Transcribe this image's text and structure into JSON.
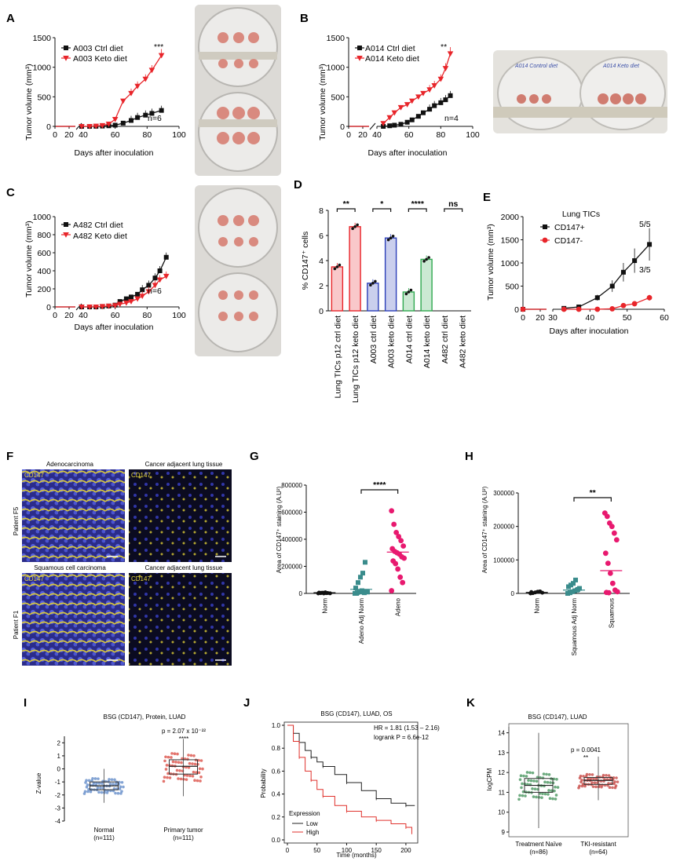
{
  "panels": {
    "A": "A",
    "B": "B",
    "C": "C",
    "D": "D",
    "E": "E",
    "F": "F",
    "G": "G",
    "H": "H",
    "I": "I",
    "J": "J",
    "K": "K"
  },
  "chart_data": [
    {
      "id": "A",
      "type": "line",
      "ylabel": "Tumor volume (mm³)",
      "xlabel": "Days after inoculation",
      "xticks": [
        "0",
        "20",
        "40",
        "60",
        "80",
        "100"
      ],
      "yticks": [
        "0",
        "500",
        "1000",
        "1500"
      ],
      "ylim": [
        0,
        1500
      ],
      "n_label": "n=6",
      "series": [
        {
          "name": "A003 Ctrl diet",
          "color": "#111111",
          "marker": "square",
          "x": [
            39,
            44,
            48,
            52,
            56,
            60,
            65,
            70,
            74,
            79,
            83,
            89
          ],
          "y": [
            0,
            0,
            2,
            5,
            10,
            20,
            55,
            100,
            150,
            190,
            220,
            270
          ]
        },
        {
          "name": "A003 Keto diet",
          "color": "#e8252a",
          "marker": "triangle-down",
          "x": [
            39,
            44,
            48,
            52,
            56,
            60,
            65,
            70,
            74,
            79,
            83,
            89
          ],
          "y": [
            0,
            0,
            5,
            15,
            40,
            120,
            430,
            560,
            680,
            800,
            950,
            1200
          ]
        }
      ],
      "significance": "***"
    },
    {
      "id": "B",
      "type": "line",
      "ylabel": "Tumor volume (mm³)",
      "xlabel": "Days after inoculation",
      "xticks": [
        "0",
        "20",
        "40",
        "60",
        "80",
        "100"
      ],
      "yticks": [
        "0",
        "500",
        "1000",
        "1500"
      ],
      "ylim": [
        0,
        1500
      ],
      "n_label": "n=4",
      "series": [
        {
          "name": "A014 Ctrl diet",
          "color": "#111111",
          "marker": "square",
          "x": [
            44,
            48,
            51,
            55,
            59,
            62,
            66,
            69,
            73,
            76,
            80,
            83,
            86
          ],
          "y": [
            0,
            10,
            20,
            35,
            70,
            110,
            170,
            230,
            290,
            350,
            400,
            450,
            520
          ]
        },
        {
          "name": "A014 Keto diet",
          "color": "#e8252a",
          "marker": "triangle-down",
          "x": [
            44,
            48,
            51,
            55,
            59,
            62,
            66,
            69,
            73,
            76,
            80,
            83,
            86
          ],
          "y": [
            50,
            150,
            230,
            320,
            370,
            430,
            500,
            560,
            620,
            690,
            800,
            980,
            1230
          ]
        }
      ],
      "significance": "**"
    },
    {
      "id": "C",
      "type": "line",
      "ylabel": "Tumor volume (mm³)",
      "xlabel": "Days after inoculation",
      "xticks": [
        "0",
        "20",
        "40",
        "60",
        "80",
        "100"
      ],
      "yticks": [
        "0",
        "200",
        "400",
        "600",
        "800",
        "1000"
      ],
      "ylim": [
        0,
        1000
      ],
      "n_label": "n=6",
      "series": [
        {
          "name": "A482 Ctrl diet",
          "color": "#111111",
          "marker": "square",
          "x": [
            39,
            44,
            48,
            52,
            56,
            60,
            63,
            67,
            70,
            74,
            77,
            81,
            85,
            88,
            92
          ],
          "y": [
            0,
            0,
            0,
            5,
            10,
            20,
            60,
            90,
            110,
            140,
            190,
            240,
            320,
            400,
            550
          ]
        },
        {
          "name": "A482 Keto diet",
          "color": "#e8252a",
          "marker": "triangle-down",
          "x": [
            39,
            44,
            48,
            52,
            56,
            60,
            63,
            67,
            70,
            74,
            77,
            81,
            85,
            88,
            92
          ],
          "y": [
            0,
            0,
            0,
            5,
            10,
            15,
            30,
            45,
            60,
            90,
            120,
            170,
            240,
            300,
            340
          ]
        }
      ]
    },
    {
      "id": "D",
      "type": "bar",
      "ylabel": "% CD147⁺ cells",
      "yticks": [
        "0",
        "2",
        "4",
        "6",
        "8"
      ],
      "ylim": [
        0,
        8
      ],
      "categories": [
        "Lung TICs p12 ctrl diet",
        "Lung TICs p12 keto diet",
        "A003 ctrl diet",
        "A003 keto diet",
        "A014 ctrl diet",
        "A014 keto diet",
        "A482 ctrl diet",
        "A482 keto diet"
      ],
      "values": [
        3.5,
        6.7,
        2.2,
        5.8,
        1.5,
        4.1,
        0,
        0
      ],
      "colors": [
        "#e8252a",
        "#e8252a",
        "#2c3fb8",
        "#2c3fb8",
        "#2fa84f",
        "#2fa84f",
        "#111111",
        "#111111"
      ],
      "significance": [
        "**",
        "*",
        "****",
        "ns"
      ]
    },
    {
      "id": "E",
      "type": "line",
      "title": "Lung TICs",
      "ylabel": "Tumor volume (mm³)",
      "xlabel": "Days after inoculation",
      "xticks": [
        "0",
        "20",
        "30",
        "40",
        "50",
        "60"
      ],
      "yticks": [
        "0",
        "500",
        "1000",
        "1500",
        "2000"
      ],
      "ylim": [
        0,
        2000
      ],
      "series": [
        {
          "name": "CD147+",
          "color": "#111111",
          "marker": "square",
          "x": [
            0,
            33,
            37,
            42,
            46,
            49,
            52,
            56
          ],
          "y": [
            0,
            20,
            50,
            250,
            500,
            800,
            1050,
            1400
          ],
          "note": "5/5"
        },
        {
          "name": "CD147-",
          "color": "#e8252a",
          "marker": "circle",
          "x": [
            0,
            33,
            37,
            42,
            46,
            49,
            52,
            56
          ],
          "y": [
            0,
            0,
            0,
            0,
            10,
            80,
            120,
            250
          ],
          "note": "3/5"
        }
      ]
    },
    {
      "id": "G",
      "type": "scatter",
      "ylabel": "Area of CD147⁺ staining (A.U²)",
      "yticks": [
        "0",
        "200000",
        "400000",
        "600000",
        "800000"
      ],
      "ylim": [
        0,
        800000
      ],
      "categories": [
        "Norm",
        "Adeno Adj Norm",
        "Adeno"
      ],
      "means": [
        5000,
        30000,
        305000
      ],
      "significance": "****"
    },
    {
      "id": "H",
      "type": "scatter",
      "ylabel": "Area of CD147⁺ staining (A.U²)",
      "yticks": [
        "0",
        "100000",
        "200000",
        "300000"
      ],
      "ylim": [
        0,
        300000
      ],
      "categories": [
        "Norm",
        "Squamous Adj Norm",
        "Squamous"
      ],
      "means": [
        3000,
        10000,
        68000
      ],
      "significance": "**"
    },
    {
      "id": "I",
      "type": "box",
      "title": "BSG (CD147), Protein, LUAD",
      "ylabel": "Z-value",
      "yticks": [
        "2",
        "1",
        "0",
        "-1",
        "-2",
        "-3",
        "-4"
      ],
      "categories": [
        "Normal",
        "Primary tumor"
      ],
      "counts": [
        "(n=111)",
        "(n=111)"
      ],
      "pvalue": "p = 2.07 x 10⁻²²",
      "significance": "****",
      "boxes": [
        {
          "q1": -1.6,
          "median": -1.3,
          "q3": -1.0,
          "min": -2.6,
          "max": 0.0,
          "color": "#5b86c6"
        },
        {
          "q1": -0.4,
          "median": 0.2,
          "q3": 0.7,
          "min": -2.1,
          "max": 2.3,
          "color": "#d9463c"
        }
      ]
    },
    {
      "id": "J",
      "type": "line",
      "title": "BSG (CD147), LUAD, OS",
      "ylabel": "Probability",
      "xlabel": "Time (months)",
      "xticks": [
        "0",
        "50",
        "100",
        "150",
        "200"
      ],
      "yticks": [
        "0.0",
        "0.2",
        "0.4",
        "0.6",
        "0.8",
        "1.0"
      ],
      "hr": "HR = 1.81 (1.53 – 2.16)",
      "logrank": "logrank P = 6.6e-12",
      "legend_title": "Expression",
      "series": [
        {
          "name": "Low",
          "color": "#222222",
          "x": [
            0,
            10,
            20,
            30,
            40,
            50,
            60,
            80,
            100,
            125,
            150,
            175,
            200,
            215
          ],
          "y": [
            1.0,
            0.93,
            0.85,
            0.78,
            0.72,
            0.68,
            0.64,
            0.57,
            0.5,
            0.43,
            0.36,
            0.32,
            0.3,
            0.3
          ]
        },
        {
          "name": "High",
          "color": "#e0322d",
          "x": [
            0,
            10,
            20,
            30,
            40,
            50,
            60,
            80,
            100,
            125,
            150,
            175,
            200,
            210
          ],
          "y": [
            1.0,
            0.86,
            0.72,
            0.6,
            0.52,
            0.44,
            0.38,
            0.3,
            0.25,
            0.2,
            0.17,
            0.14,
            0.11,
            0.05
          ]
        }
      ]
    },
    {
      "id": "K",
      "type": "box",
      "title": "BSG (CD147), LUAD",
      "ylabel": "logCPM",
      "yticks": [
        "9",
        "10",
        "11",
        "12",
        "13",
        "14"
      ],
      "categories": [
        "Treatment Naïve",
        "TKI-resistant"
      ],
      "counts": [
        "(n=86)",
        "(n=64)"
      ],
      "pvalue": "p = 0.0041",
      "significance": "**",
      "boxes": [
        {
          "q1": 11.0,
          "median": 11.35,
          "q3": 11.7,
          "min": 9.2,
          "max": 14.0,
          "color": "#3c8f54"
        },
        {
          "q1": 11.4,
          "median": 11.6,
          "q3": 11.75,
          "min": 10.6,
          "max": 12.8,
          "color": "#c43d3a"
        }
      ]
    }
  ],
  "figure_F": {
    "rows": [
      "Patient F5",
      "Patient F1"
    ],
    "titles": [
      "Adenocarcinoma",
      "Cancer adjacent lung tissue",
      "Squamous cell carcinoma",
      "Cancer adjacent lung tissue"
    ],
    "stain": "CD147"
  },
  "photos": {
    "B_labels": [
      "A014 Control diet",
      "A014 Keto diet"
    ]
  }
}
